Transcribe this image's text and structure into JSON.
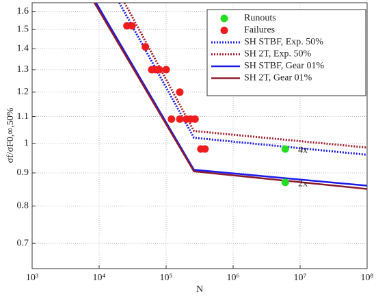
{
  "chart_data": {
    "type": "line",
    "xlabel": "N",
    "ylabel": "σf/σF0,∞,50%",
    "xscale": "log",
    "yscale": "log",
    "grid": true,
    "legend": "upper right",
    "xlim": [
      1000,
      100000000
    ],
    "xticks": [
      {
        "value": 1000,
        "label": "10³"
      },
      {
        "value": 10000,
        "label": "10⁴"
      },
      {
        "value": 100000,
        "label": "10⁵"
      },
      {
        "value": 1000000,
        "label": "10⁶"
      },
      {
        "value": 10000000,
        "label": "10⁷"
      },
      {
        "value": 100000000,
        "label": "10⁸"
      }
    ],
    "ylim": [
      0.64,
      1.65
    ],
    "yticks": [
      0.7,
      0.8,
      0.9,
      1,
      1.1,
      1.2,
      1.3,
      1.4,
      1.5,
      1.6
    ],
    "series": [
      {
        "name": "Runouts",
        "color": "#22dd22",
        "mode": "markers",
        "x": [
          6000000,
          6000000
        ],
        "values": [
          0.98,
          0.87
        ]
      },
      {
        "name": "Failures",
        "color": "#ee1c1c",
        "mode": "markers",
        "x": [
          26000,
          31000,
          49000,
          61000,
          70000,
          79000,
          100000,
          120000,
          160000,
          160000,
          200000,
          230000,
          270000,
          330000,
          380000
        ],
        "values": [
          1.52,
          1.52,
          1.41,
          1.3,
          1.3,
          1.3,
          1.3,
          1.09,
          1.2,
          1.09,
          1.09,
          1.09,
          1.09,
          0.98,
          0.98
        ]
      },
      {
        "name": "SH STBF, Exp. 50%",
        "color": "#1a1aee",
        "mode": "dotted",
        "x": [
          20000,
          260000,
          100000000
        ],
        "values": [
          1.65,
          1.02,
          0.96
        ]
      },
      {
        "name": "SH 2T, Exp. 50%",
        "color": "#a01c2c",
        "mode": "dotted",
        "x": [
          24000,
          260000,
          100000000
        ],
        "values": [
          1.65,
          1.045,
          0.985
        ]
      },
      {
        "name": "SH STBF, Gear 01%",
        "color": "#1a1aee",
        "mode": "solid",
        "x": [
          9000,
          260000,
          100000000
        ],
        "values": [
          1.65,
          0.91,
          0.86
        ]
      },
      {
        "name": "SH 2T, Gear 01%",
        "color": "#8b1a2a",
        "mode": "solid",
        "x": [
          8500,
          260000,
          100000000
        ],
        "values": [
          1.65,
          0.905,
          0.85
        ]
      }
    ],
    "annotations": [
      {
        "text": "4x",
        "x": 11000000,
        "y": 0.975
      },
      {
        "text": "2x",
        "x": 11000000,
        "y": 0.865
      }
    ]
  }
}
